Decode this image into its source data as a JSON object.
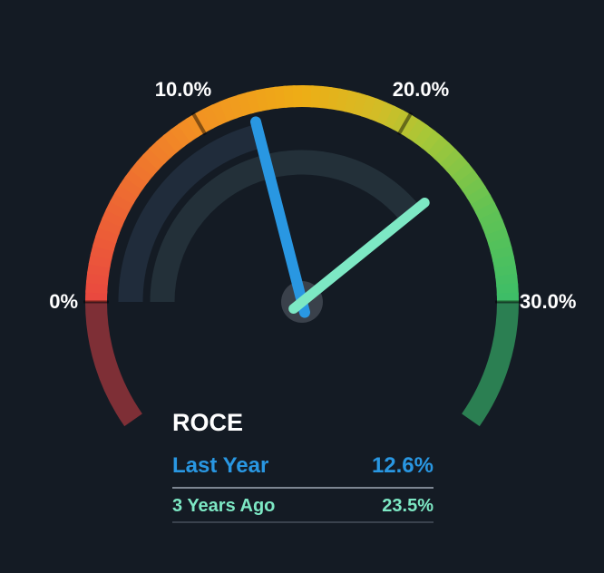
{
  "chart_data": {
    "type": "gauge",
    "title": "ROCE",
    "unit": "%",
    "min": 0,
    "max": 30,
    "start_angle_deg": 180,
    "end_angle_deg": 0,
    "underflow_extension_deg": 35,
    "overflow_extension_deg": 35,
    "ticks": [
      {
        "value": 0,
        "label": "0%"
      },
      {
        "value": 10,
        "label": "10.0%"
      },
      {
        "value": 20,
        "label": "20.0%"
      },
      {
        "value": 30,
        "label": "30.0%"
      }
    ],
    "series": [
      {
        "name": "Last Year",
        "value": 12.6,
        "display": "12.6%",
        "color": "#2997e2",
        "trail_color": "#202c3b"
      },
      {
        "name": "3 Years Ago",
        "value": 23.5,
        "display": "23.5%",
        "color": "#7de8c4",
        "trail_color": "#233039"
      }
    ],
    "gradient_stops": [
      [
        0.0,
        "#e94840"
      ],
      [
        0.18,
        "#ee6c31"
      ],
      [
        0.33,
        "#f29123"
      ],
      [
        0.5,
        "#eead15"
      ],
      [
        0.62,
        "#d3bc26"
      ],
      [
        0.7,
        "#a9c737"
      ],
      [
        0.85,
        "#63c353"
      ],
      [
        1.0,
        "#3cbd68"
      ]
    ],
    "colors": {
      "background": "#141b24",
      "underflow_arc": "#7e2f36",
      "overflow_arc": "#2b7f52",
      "tick_mark": "rgba(0,0,0,0.45)",
      "boundary_line": "rgba(0,0,0,0.5)",
      "tick_label": "#ffffff",
      "hub": "#3a414b",
      "legend_title": "#ffffff",
      "divider_top": "#7d8692",
      "divider_bottom": "#3a424d"
    }
  }
}
